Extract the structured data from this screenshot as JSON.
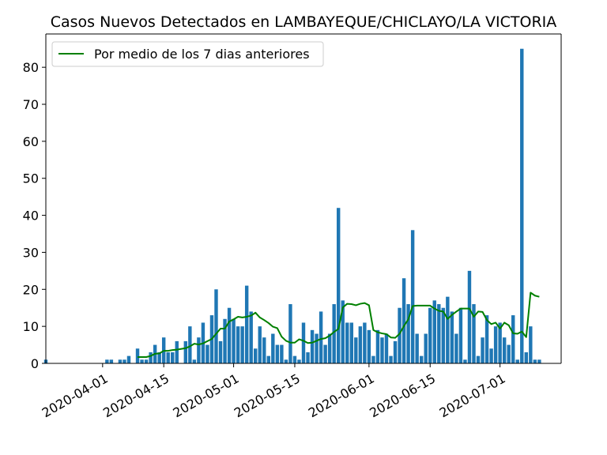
{
  "chart_data": {
    "type": "bar",
    "title": "Casos Nuevos Detectados en LAMBAYEQUE/CHICLAYO/LA VICTORIA",
    "xlabel": "",
    "ylabel": "",
    "x_axis": "date",
    "xlim": [
      "2020-03-19",
      "2020-07-15"
    ],
    "ylim": [
      0,
      89
    ],
    "xticks": [
      "2020-04-01",
      "2020-04-15",
      "2020-05-01",
      "2020-05-15",
      "2020-06-01",
      "2020-06-15",
      "2020-07-01"
    ],
    "yticks": [
      0,
      10,
      20,
      30,
      40,
      50,
      60,
      70,
      80
    ],
    "grid": false,
    "legend_position": "top-left",
    "colors": {
      "bars": "#1f77b4",
      "line": "#008000"
    },
    "series": [
      {
        "type": "bar",
        "x": [
          "2020-03-19",
          "2020-04-02",
          "2020-04-03",
          "2020-04-05",
          "2020-04-06",
          "2020-04-07",
          "2020-04-09",
          "2020-04-10",
          "2020-04-11",
          "2020-04-12",
          "2020-04-13",
          "2020-04-14",
          "2020-04-15",
          "2020-04-16",
          "2020-04-17",
          "2020-04-18",
          "2020-04-20",
          "2020-04-21",
          "2020-04-22",
          "2020-04-23",
          "2020-04-24",
          "2020-04-25",
          "2020-04-26",
          "2020-04-27",
          "2020-04-28",
          "2020-04-29",
          "2020-04-30",
          "2020-05-01",
          "2020-05-02",
          "2020-05-03",
          "2020-05-04",
          "2020-05-05",
          "2020-05-06",
          "2020-05-07",
          "2020-05-08",
          "2020-05-09",
          "2020-05-10",
          "2020-05-11",
          "2020-05-12",
          "2020-05-13",
          "2020-05-14",
          "2020-05-15",
          "2020-05-16",
          "2020-05-17",
          "2020-05-18",
          "2020-05-19",
          "2020-05-20",
          "2020-05-21",
          "2020-05-22",
          "2020-05-23",
          "2020-05-24",
          "2020-05-25",
          "2020-05-26",
          "2020-05-27",
          "2020-05-28",
          "2020-05-29",
          "2020-05-30",
          "2020-05-31",
          "2020-06-01",
          "2020-06-02",
          "2020-06-03",
          "2020-06-04",
          "2020-06-05",
          "2020-06-06",
          "2020-06-07",
          "2020-06-08",
          "2020-06-09",
          "2020-06-10",
          "2020-06-11",
          "2020-06-12",
          "2020-06-13",
          "2020-06-14",
          "2020-06-15",
          "2020-06-16",
          "2020-06-17",
          "2020-06-18",
          "2020-06-19",
          "2020-06-20",
          "2020-06-21",
          "2020-06-22",
          "2020-06-23",
          "2020-06-24",
          "2020-06-25",
          "2020-06-26",
          "2020-06-27",
          "2020-06-28",
          "2020-06-29",
          "2020-06-30",
          "2020-07-01",
          "2020-07-02",
          "2020-07-03",
          "2020-07-04",
          "2020-07-05",
          "2020-07-06",
          "2020-07-07",
          "2020-07-08",
          "2020-07-09",
          "2020-07-10"
        ],
        "y": [
          1,
          1,
          1,
          1,
          1,
          2,
          4,
          1,
          1,
          3,
          5,
          3,
          7,
          3,
          3,
          6,
          6,
          10,
          1,
          7,
          11,
          5,
          13,
          20,
          6,
          12,
          15,
          12,
          10,
          10,
          21,
          14,
          4,
          10,
          7,
          2,
          8,
          5,
          5,
          1,
          16,
          2,
          1,
          11,
          3,
          9,
          8,
          14,
          5,
          8,
          16,
          42,
          17,
          11,
          11,
          7,
          10,
          11,
          9,
          2,
          9,
          7,
          8,
          2,
          6,
          15,
          23,
          16,
          36,
          8,
          2,
          8,
          15,
          17,
          16,
          15,
          18,
          14,
          8,
          15,
          1,
          25,
          16,
          2,
          7,
          13,
          4,
          10,
          11,
          7,
          5,
          13,
          1,
          85,
          3,
          10,
          1,
          1
        ]
      },
      {
        "type": "line",
        "name": "Por medio de los 7 dias anteriores",
        "x": [
          "2020-04-09",
          "2020-04-10",
          "2020-04-11",
          "2020-04-12",
          "2020-04-13",
          "2020-04-14",
          "2020-04-15",
          "2020-04-16",
          "2020-04-17",
          "2020-04-18",
          "2020-04-20",
          "2020-04-21",
          "2020-04-22",
          "2020-04-23",
          "2020-04-24",
          "2020-04-25",
          "2020-04-26",
          "2020-04-27",
          "2020-04-28",
          "2020-04-29",
          "2020-04-30",
          "2020-05-01",
          "2020-05-02",
          "2020-05-03",
          "2020-05-04",
          "2020-05-05",
          "2020-05-06",
          "2020-05-07",
          "2020-05-08",
          "2020-05-09",
          "2020-05-10",
          "2020-05-11",
          "2020-05-12",
          "2020-05-13",
          "2020-05-14",
          "2020-05-15",
          "2020-05-16",
          "2020-05-17",
          "2020-05-18",
          "2020-05-19",
          "2020-05-20",
          "2020-05-21",
          "2020-05-22",
          "2020-05-23",
          "2020-05-24",
          "2020-05-25",
          "2020-05-26",
          "2020-05-27",
          "2020-05-28",
          "2020-05-29",
          "2020-05-30",
          "2020-05-31",
          "2020-06-01",
          "2020-06-02",
          "2020-06-03",
          "2020-06-04",
          "2020-06-05",
          "2020-06-06",
          "2020-06-07",
          "2020-06-08",
          "2020-06-09",
          "2020-06-10",
          "2020-06-11",
          "2020-06-12",
          "2020-06-13",
          "2020-06-14",
          "2020-06-15",
          "2020-06-16",
          "2020-06-17",
          "2020-06-18",
          "2020-06-19",
          "2020-06-20",
          "2020-06-21",
          "2020-06-22",
          "2020-06-23",
          "2020-06-24",
          "2020-06-25",
          "2020-06-26",
          "2020-06-27",
          "2020-06-28",
          "2020-06-29",
          "2020-06-30",
          "2020-07-01",
          "2020-07-02",
          "2020-07-03",
          "2020-07-04",
          "2020-07-05",
          "2020-07-06",
          "2020-07-07",
          "2020-07-08",
          "2020-07-09",
          "2020-07-10"
        ],
        "y": [
          1.7,
          1.7,
          1.7,
          2.0,
          2.6,
          2.7,
          3.4,
          3.4,
          3.6,
          3.7,
          4.1,
          4.6,
          5.3,
          5.1,
          5.4,
          6.0,
          6.6,
          8.0,
          9.4,
          9.4,
          11.3,
          11.9,
          12.6,
          12.4,
          12.6,
          12.9,
          13.7,
          12.4,
          11.7,
          10.9,
          9.9,
          9.5,
          7.2,
          6.1,
          5.6,
          5.6,
          6.5,
          6.1,
          5.5,
          5.6,
          6.1,
          6.6,
          6.8,
          7.5,
          8.5,
          9.3,
          15.1,
          16.1,
          16.0,
          15.7,
          16.1,
          16.3,
          15.7,
          9.0,
          8.4,
          8.1,
          7.9,
          7.0,
          6.9,
          8.0,
          10.1,
          11.9,
          15.5,
          15.6,
          15.6,
          15.6,
          15.6,
          14.8,
          14.2,
          14.0,
          12.0,
          13.1,
          14.0,
          14.8,
          14.8,
          14.8,
          12.6,
          14.0,
          13.9,
          11.7,
          10.6,
          11.0,
          9.4,
          11.0,
          10.3,
          8.1,
          8.0,
          8.6,
          7.1,
          19.1,
          18.3,
          18.0
        ]
      }
    ]
  }
}
